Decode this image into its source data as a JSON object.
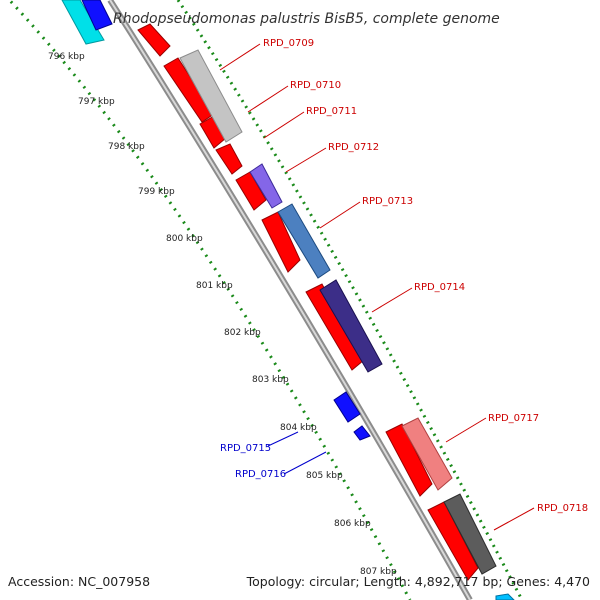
{
  "title": "Rhodopseudomonas palustris BisB5, complete genome",
  "accession": "Accession: NC_007958",
  "summary": "Topology: circular; Length: 4,892,717 bp; Genes: 4,470",
  "colors": {
    "forward_cds": "#ff0000",
    "reverse_cds": "#0000ff",
    "backbone": "#9a9a9a",
    "tick": "#1a8a1a",
    "forward_label": "#cc0000",
    "reverse_label": "#0000cc"
  },
  "scale_labels": [
    "796 kbp",
    "797 kbp",
    "798 kbp",
    "799 kbp",
    "800 kbp",
    "801 kbp",
    "802 kbp",
    "803 kbp",
    "804 kbp",
    "805 kbp",
    "806 kbp",
    "807 kbp"
  ],
  "forward_genes": [
    "RPD_0709",
    "RPD_0710",
    "RPD_0711",
    "RPD_0712",
    "RPD_0713",
    "RPD_0714",
    "RPD_0717",
    "RPD_0718"
  ],
  "reverse_genes": [
    "RPD_0715",
    "RPD_0716"
  ]
}
